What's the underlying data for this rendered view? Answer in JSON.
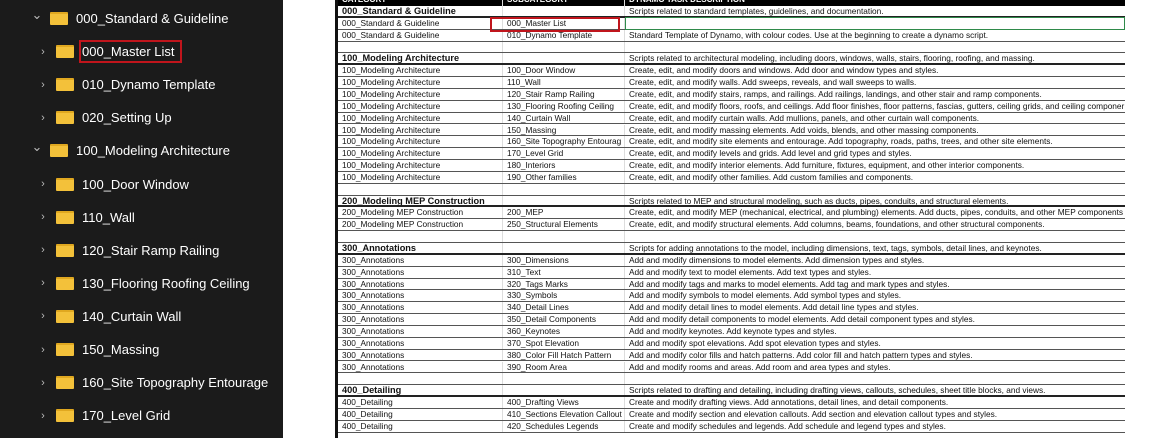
{
  "tree": [
    {
      "label": "000_Standard & Guideline",
      "level": 0,
      "expanded": true
    },
    {
      "label": "000_Master List",
      "level": 1,
      "selected": true
    },
    {
      "label": "010_Dynamo Template",
      "level": 1
    },
    {
      "label": "020_Setting Up",
      "level": 1
    },
    {
      "label": "100_Modeling Architecture",
      "level": 0,
      "expanded": true
    },
    {
      "label": "100_Door Window",
      "level": 1
    },
    {
      "label": "110_Wall",
      "level": 1
    },
    {
      "label": "120_Stair Ramp Railing",
      "level": 1
    },
    {
      "label": "130_Flooring Roofing Ceiling",
      "level": 1
    },
    {
      "label": "140_Curtain Wall",
      "level": 1
    },
    {
      "label": "150_Massing",
      "level": 1
    },
    {
      "label": "160_Site Topography Entourage",
      "level": 1
    },
    {
      "label": "170_Level Grid",
      "level": 1
    }
  ],
  "sheet": {
    "headers": [
      "CATEGORY",
      "SUBCATEGORY",
      "DYNAMO TASK DESCRIPTION"
    ],
    "rows": [
      {
        "type": "sec",
        "a": "000_Standard & Guideline",
        "b": "",
        "c": "Scripts related to standard templates, guidelines, and documentation."
      },
      {
        "a": "000_Standard & Guideline",
        "b": "000_Master List",
        "c": ""
      },
      {
        "a": "000_Standard & Guideline",
        "b": "010_Dynamo Template",
        "c": "Standard Template of Dynamo, with colour codes. Use at the beginning to create a dynamo script."
      },
      {
        "type": "blank",
        "a": "",
        "b": "",
        "c": ""
      },
      {
        "type": "sec",
        "a": "100_Modeling Architecture",
        "b": "",
        "c": "Scripts related to architectural modeling, including doors, windows, walls, stairs, flooring, roofing, and massing."
      },
      {
        "a": "100_Modeling Architecture",
        "b": "100_Door Window",
        "c": "Create, edit, and modify doors and windows. Add door and window types and styles."
      },
      {
        "a": "100_Modeling Architecture",
        "b": "110_Wall",
        "c": "Create, edit, and modify walls. Add sweeps, reveals, and wall sweeps to walls."
      },
      {
        "a": "100_Modeling Architecture",
        "b": "120_Stair Ramp Railing",
        "c": "Create, edit, and modify stairs, ramps, and railings. Add railings, landings, and other stair and ramp components."
      },
      {
        "a": "100_Modeling Architecture",
        "b": "130_Flooring Roofing Ceiling",
        "c": "Create, edit, and modify floors, roofs, and ceilings. Add floor finishes, floor patterns, fascias, gutters, ceiling grids, and ceiling componer"
      },
      {
        "a": "100_Modeling Architecture",
        "b": "140_Curtain Wall",
        "c": "Create, edit, and modify curtain walls. Add mullions, panels, and other curtain wall components."
      },
      {
        "a": "100_Modeling Architecture",
        "b": "150_Massing",
        "c": "Create, edit, and modify massing elements. Add voids, blends, and other massing components."
      },
      {
        "a": "100_Modeling Architecture",
        "b": "160_Site Topography Entourag",
        "c": "Create, edit, and modify site elements and entourage. Add topography, roads, paths, trees, and other site elements."
      },
      {
        "a": "100_Modeling Architecture",
        "b": "170_Level Grid",
        "c": "Create, edit, and modify levels and grids. Add level and grid types and styles."
      },
      {
        "a": "100_Modeling Architecture",
        "b": "180_Interiors",
        "c": "Create, edit, and modify interior elements. Add furniture, fixtures, equipment, and other interior components."
      },
      {
        "a": "100_Modeling Architecture",
        "b": "190_Other families",
        "c": "Create, edit, and modify other families. Add custom families and components."
      },
      {
        "type": "blank",
        "a": "",
        "b": "",
        "c": ""
      },
      {
        "type": "sec",
        "a": "200_Modeling MEP Construction",
        "b": "",
        "c": "Scripts related to MEP and structural modeling, such as ducts, pipes, conduits, and structural elements."
      },
      {
        "a": "200_Modeling MEP Construction",
        "b": "200_MEP",
        "c": "Create, edit, and modify MEP (mechanical, electrical, and plumbing) elements. Add ducts, pipes, conduits, and other MEP components"
      },
      {
        "a": "200_Modeling MEP Construction",
        "b": "250_Structural Elements",
        "c": "Create, edit, and modify structural elements. Add columns, beams, foundations, and other structural components."
      },
      {
        "type": "blank",
        "a": "",
        "b": "",
        "c": ""
      },
      {
        "type": "sec",
        "a": "300_Annotations",
        "b": "",
        "c": "Scripts for adding annotations to the model, including dimensions, text, tags, symbols, detail lines, and keynotes."
      },
      {
        "a": "300_Annotations",
        "b": "300_Dimensions",
        "c": "Add and modify dimensions to model elements. Add dimension types and styles."
      },
      {
        "a": "300_Annotations",
        "b": "310_Text",
        "c": "Add and modify text to model elements. Add text types and styles."
      },
      {
        "a": "300_Annotations",
        "b": "320_Tags Marks",
        "c": "Add and modify tags and marks to model elements. Add tag and mark types and styles."
      },
      {
        "a": "300_Annotations",
        "b": "330_Symbols",
        "c": "Add and modify symbols to model elements. Add symbol types and styles."
      },
      {
        "a": "300_Annotations",
        "b": "340_Detail Lines",
        "c": "Add and modify detail lines to model elements. Add detail line types and styles."
      },
      {
        "a": "300_Annotations",
        "b": "350_Detail Components",
        "c": "Add and modify detail components to model elements. Add detail component types and styles."
      },
      {
        "a": "300_Annotations",
        "b": "360_Keynotes",
        "c": "Add and modify keynotes. Add keynote types and styles."
      },
      {
        "a": "300_Annotations",
        "b": "370_Spot Elevation",
        "c": "Add and modify spot elevations. Add spot elevation types and styles."
      },
      {
        "a": "300_Annotations",
        "b": "380_Color Fill Hatch Pattern",
        "c": "Add and modify color fills and hatch patterns. Add color fill and hatch pattern types and styles."
      },
      {
        "a": "300_Annotations",
        "b": "390_Room Area",
        "c": "Add and modify rooms and areas. Add room and area types and styles."
      },
      {
        "type": "blank",
        "a": "",
        "b": "",
        "c": ""
      },
      {
        "type": "sec",
        "a": "400_Detailing",
        "b": "",
        "c": "Scripts related to drafting and detailing, including drafting views, callouts, schedules, sheet title blocks, and views."
      },
      {
        "a": "400_Detailing",
        "b": "400_Drafting Views",
        "c": "Create and modify drafting views. Add annotations, detail lines, and detail components."
      },
      {
        "a": "400_Detailing",
        "b": "410_Sections Elevation Callout",
        "c": "Create and modify section and elevation callouts. Add section and elevation callout types and styles."
      },
      {
        "a": "400_Detailing",
        "b": "420_Schedules Legends",
        "c": "Create and modify schedules and legends. Add schedule and legend types and styles."
      }
    ]
  },
  "colors": {
    "highlight": "#c0151c",
    "selection": "#2f8a4a",
    "folder": "#f3c13a"
  }
}
